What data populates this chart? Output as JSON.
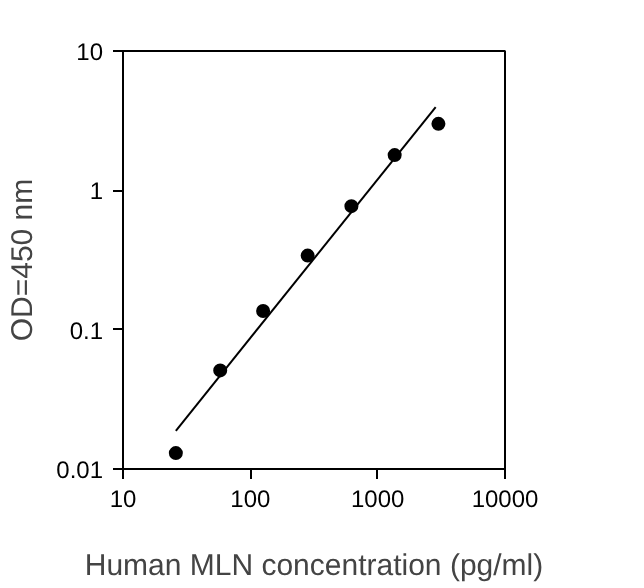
{
  "chart_data": {
    "type": "scatter",
    "xlabel": "Human MLN concentration (pg/ml)",
    "ylabel": "OD=450 nm",
    "log": "xy",
    "grid": false,
    "xlim": [
      10,
      10000
    ],
    "xticks": [
      10,
      100,
      1000,
      10000
    ],
    "ylim": [
      0.01,
      10
    ],
    "yticks": [
      0.01,
      0.1,
      1,
      10
    ],
    "series": [
      {
        "color": "#000000",
        "marker": "circle",
        "x": [
          26,
          58,
          126,
          282,
          622,
          1360,
          3000
        ],
        "values": [
          0.013,
          0.051,
          0.136,
          0.34,
          0.77,
          1.79,
          3.0
        ]
      },
      {
        "type": "line",
        "marker": "none",
        "color": "#000000",
        "x": [
          26,
          2855
        ],
        "values": [
          0.0188,
          3.96
        ]
      }
    ]
  }
}
